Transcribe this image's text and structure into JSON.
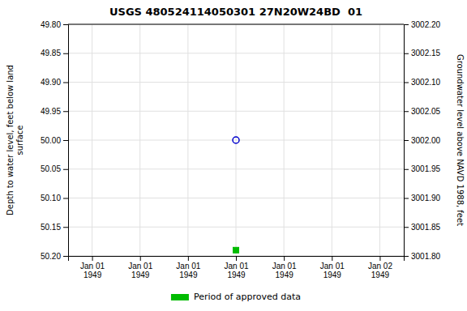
{
  "chart_data": {
    "type": "scatter",
    "title": "USGS 480524114050301 27N20W24BD  01",
    "y_label": "Depth to water level, feet below land\nsurface",
    "y2_label": "Groundwater level above NAVD 1988, feet",
    "categories": [
      "Jan 01\n1949",
      "Jan 01\n1949",
      "Jan 01\n1949",
      "Jan 01\n1949",
      "Jan 01\n1949",
      "Jan 01\n1949",
      "Jan 02\n1949"
    ],
    "series": [
      {
        "color": "#0000cc",
        "marker": "circle",
        "values": [
          null,
          null,
          null,
          50.0,
          null,
          null,
          null
        ]
      },
      {
        "name": "Period of approved data",
        "color": "#00bb00",
        "marker": "square",
        "values": [
          null,
          null,
          null,
          50.19,
          null,
          null,
          null
        ]
      }
    ],
    "ylim": [
      50.2,
      49.8
    ],
    "yticks": [
      {
        "value": 49.8,
        "label": "49.80"
      },
      49.85,
      {
        "value": 49.9,
        "label": "49.90"
      },
      49.95,
      {
        "value": 50.0,
        "label": "50.00"
      },
      50.05,
      {
        "value": 50.1,
        "label": "50.10"
      },
      50.15,
      {
        "value": 50.2,
        "label": "50.20"
      }
    ],
    "y2lim": [
      3001.8,
      3002.2
    ],
    "y2ticks": [
      {
        "value": 3002.2,
        "label": "3002.20"
      },
      3002.15,
      {
        "value": 3002.1,
        "label": "3002.10"
      },
      3002.05,
      {
        "value": 3002.0,
        "label": "3002.00"
      },
      3001.95,
      {
        "value": 3001.9,
        "label": "3001.90"
      },
      3001.85,
      {
        "value": 3001.8,
        "label": "3001.80"
      }
    ],
    "grid": true,
    "legend": "bottom"
  }
}
